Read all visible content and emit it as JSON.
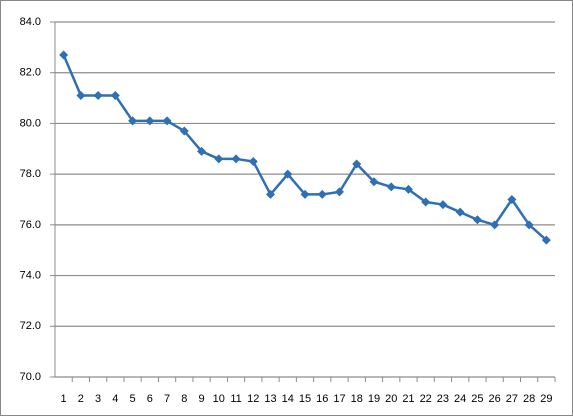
{
  "chart_data": {
    "type": "line",
    "categories": [
      1,
      2,
      3,
      4,
      5,
      6,
      7,
      8,
      9,
      10,
      11,
      12,
      13,
      14,
      15,
      16,
      17,
      18,
      19,
      20,
      21,
      22,
      23,
      24,
      25,
      26,
      27,
      28,
      29
    ],
    "values": [
      82.7,
      81.1,
      81.1,
      81.1,
      80.1,
      80.1,
      80.1,
      79.7,
      78.9,
      78.6,
      78.6,
      78.5,
      77.2,
      78.0,
      77.2,
      77.2,
      77.3,
      78.4,
      77.7,
      77.5,
      77.4,
      76.9,
      76.8,
      76.5,
      76.2,
      76.0,
      77.0,
      76.0,
      75.4
    ],
    "color": "#2f6fb3",
    "ylim": [
      70,
      84
    ],
    "yticks": [
      {
        "value": 70,
        "label": "70.0"
      },
      {
        "value": 72,
        "label": "72.0"
      },
      {
        "value": 74,
        "label": "74.0"
      },
      {
        "value": 76,
        "label": "76.0"
      },
      {
        "value": 78,
        "label": "78.0"
      },
      {
        "value": 80,
        "label": "80.0"
      },
      {
        "value": 82,
        "label": "82.0"
      },
      {
        "value": 84,
        "label": "84.0"
      }
    ],
    "grid": true
  }
}
